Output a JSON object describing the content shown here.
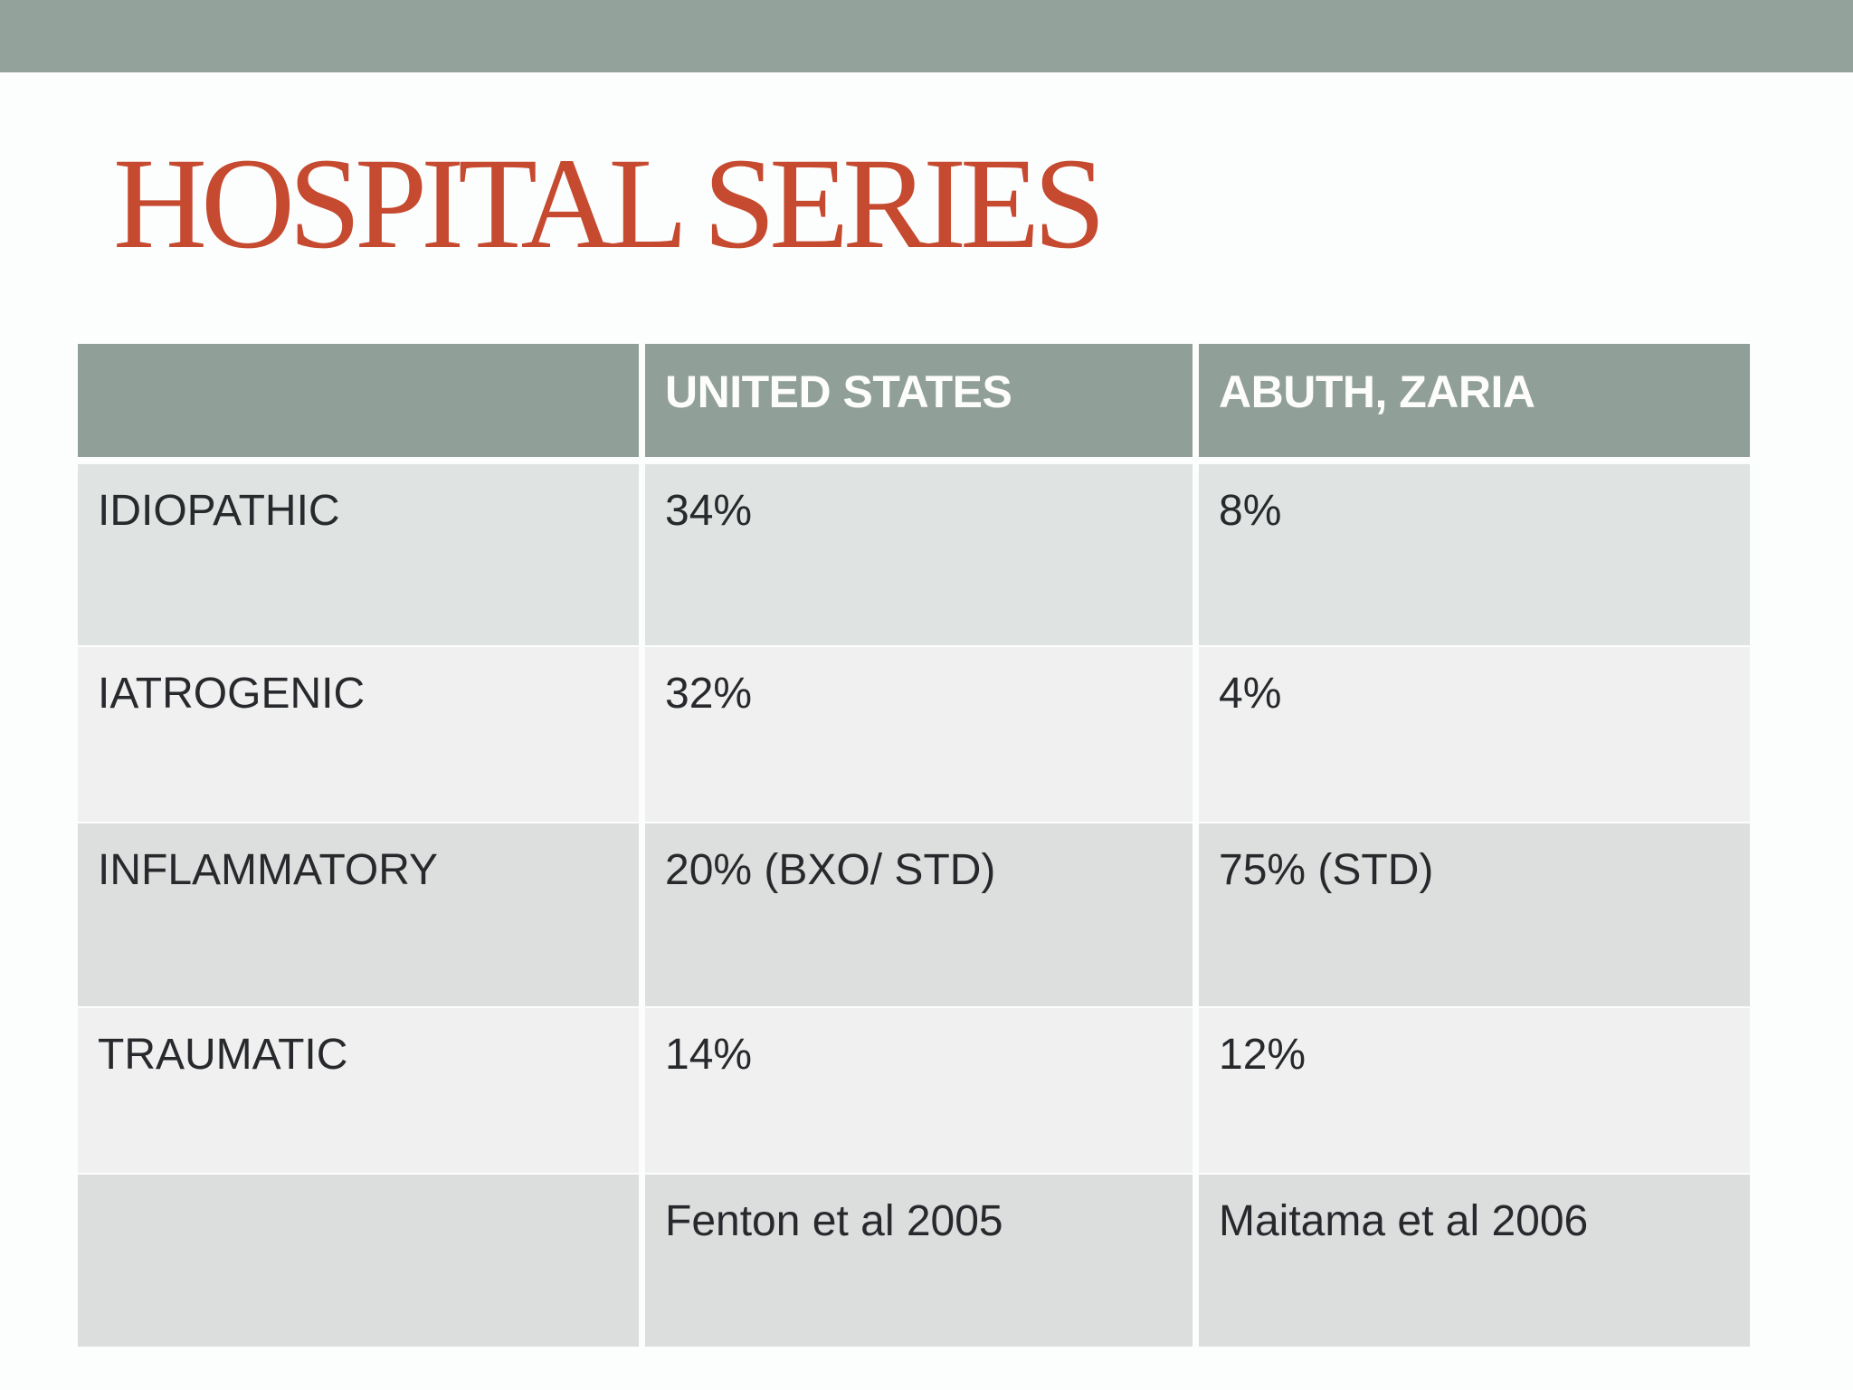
{
  "title": {
    "text": "HOSPITAL SERIES"
  },
  "colors": {
    "background": "#fcfdfd",
    "top_bar": "#93a29b",
    "title_color": "#c54a2f",
    "table_header_bg": "#909f97",
    "header_text": "#fdfdfb",
    "cell_text": "#27292c",
    "row1_bg": "#dfe3e1",
    "row2_bg": "#eff0ef",
    "row3_bg": "#dcdfdd",
    "row4_bg": "#eff0ef",
    "row5_bg": "#dbdedd"
  },
  "table": {
    "header": {
      "col1": "",
      "col2": "UNITED STATES",
      "col3": "ABUTH, ZARIA"
    },
    "rows": [
      {
        "label": "IDIOPATHIC",
        "us": "34%",
        "abuth": "8%"
      },
      {
        "label": "IATROGENIC",
        "us": "32%",
        "abuth": "4%"
      },
      {
        "label": "INFLAMMATORY",
        "us": "20% (BXO/ STD)",
        "abuth": "75% (STD)"
      },
      {
        "label": "TRAUMATIC",
        "us": "14%",
        "abuth": "12%"
      },
      {
        "label": "",
        "us": "Fenton et al 2005",
        "abuth": "Maitama et al 2006"
      }
    ]
  },
  "chart_data": {
    "type": "table",
    "title": "HOSPITAL SERIES",
    "columns": [
      "",
      "UNITED STATES",
      "ABUTH, ZARIA"
    ],
    "rows": [
      [
        "IDIOPATHIC",
        "34%",
        "8%"
      ],
      [
        "IATROGENIC",
        "32%",
        "4%"
      ],
      [
        "INFLAMMATORY",
        "20% (BXO/ STD)",
        "75% (STD)"
      ],
      [
        "TRAUMATIC",
        "14%",
        "12%"
      ],
      [
        "",
        "Fenton et al 2005",
        "Maitama et al 2006"
      ]
    ]
  }
}
